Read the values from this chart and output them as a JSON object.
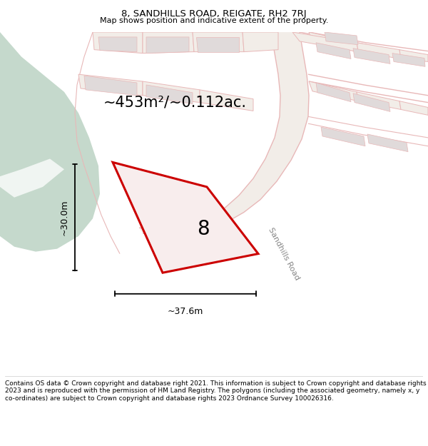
{
  "title": "8, SANDHILLS ROAD, REIGATE, RH2 7RJ",
  "subtitle": "Map shows position and indicative extent of the property.",
  "footer": "Contains OS data © Crown copyright and database right 2021. This information is subject to Crown copyright and database rights 2023 and is reproduced with the permission of HM Land Registry. The polygons (including the associated geometry, namely x, y co-ordinates) are subject to Crown copyright and database rights 2023 Ordnance Survey 100026316.",
  "area_label": "~453m²/~0.112ac.",
  "width_label": "~37.6m",
  "height_label": "~30.0m",
  "plot_number": "8",
  "bg_color": "#f2ede8",
  "green_area_color": "#c5d9cc",
  "plot_outline_color": "#e8b8b8",
  "highlight_color": "#cc0000",
  "highlight_fill": "#f8eded",
  "road_label": "Sandhills Road",
  "gray_plot_color": "#e0dada",
  "fig_width": 6.0,
  "fig_height": 6.25
}
